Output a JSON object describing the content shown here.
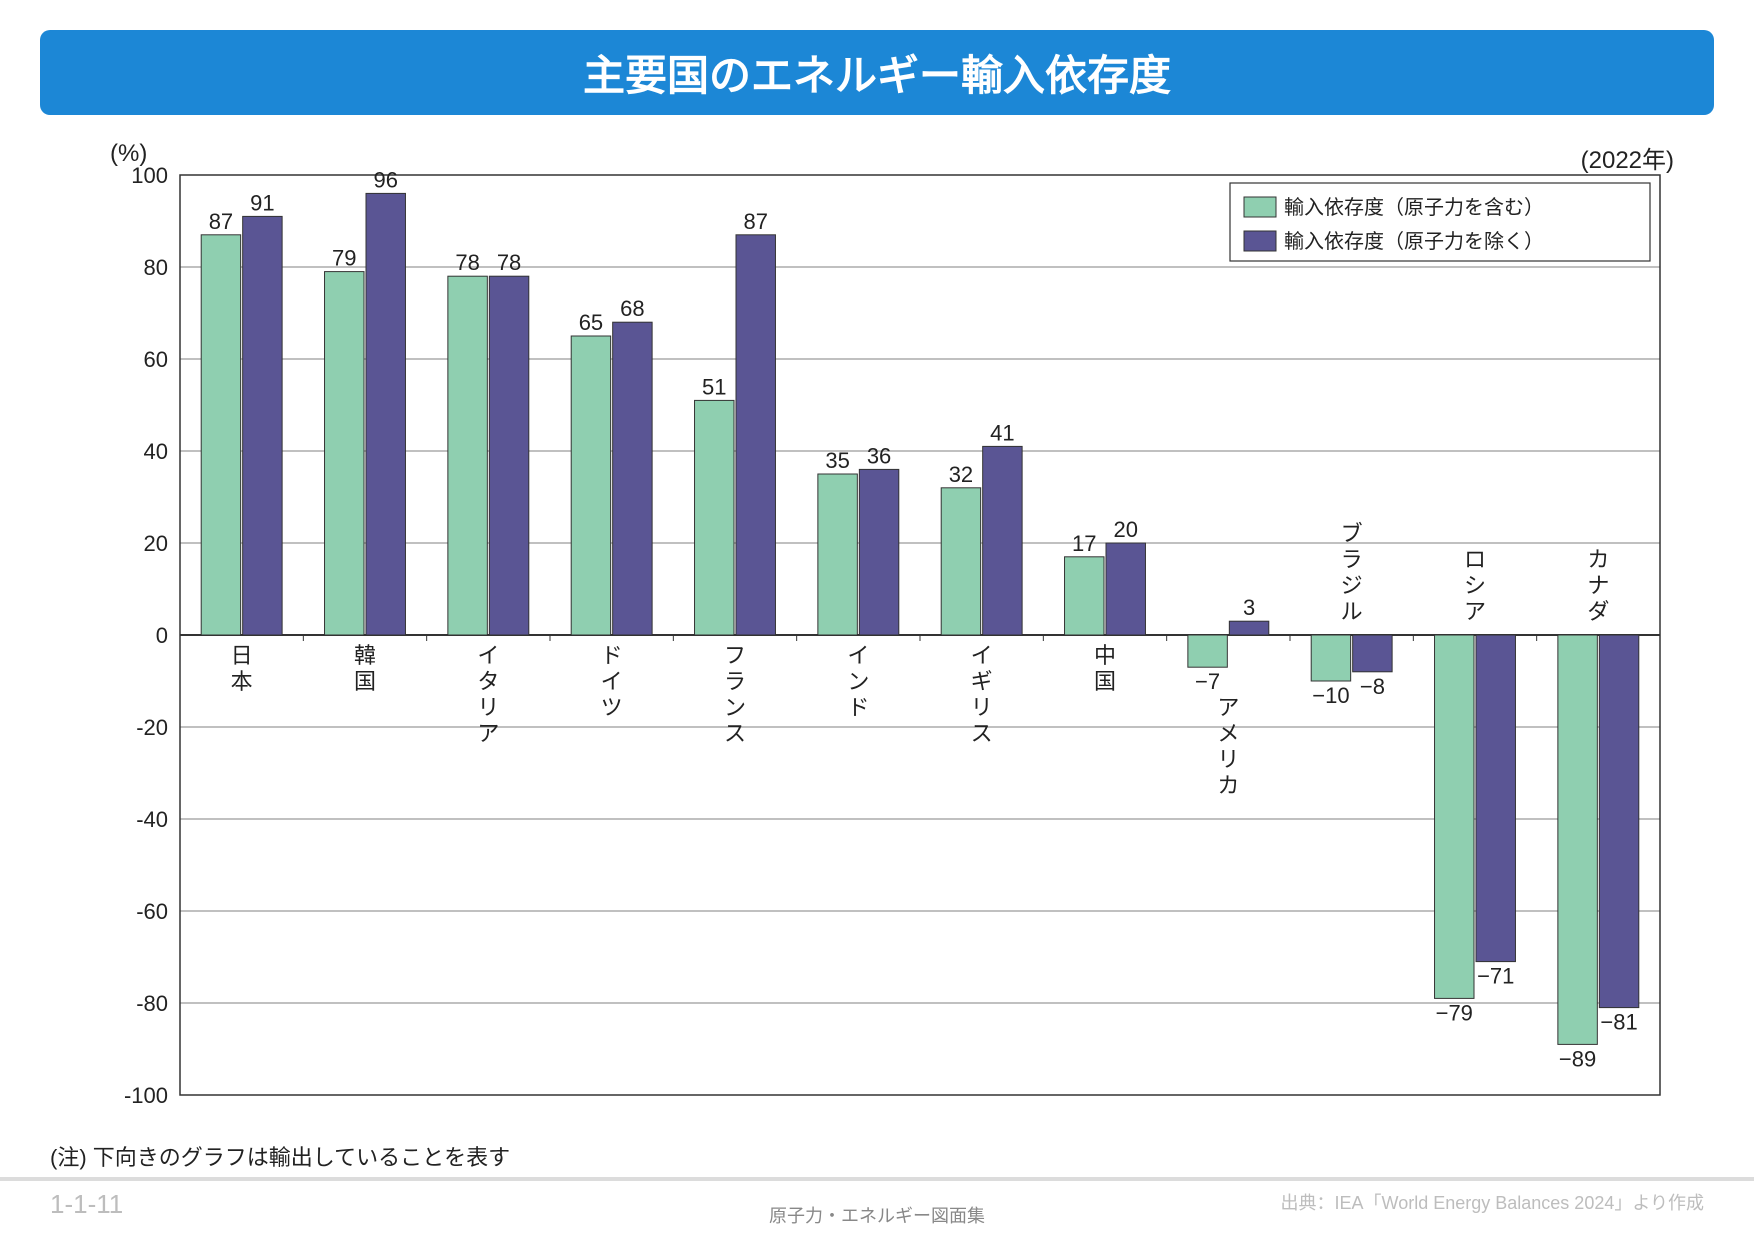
{
  "title": "主要国のエネルギー輸入依存度",
  "year_label": "(2022年)",
  "y_unit": "(%)",
  "note": "(注) 下向きのグラフは輸出していることを表す",
  "page_number": "1-1-11",
  "source": "出典：IEA「World Energy Balances 2024」より作成",
  "doc_title": "原子力・エネルギー図面集",
  "chart": {
    "type": "bar-grouped",
    "ylim": [
      -100,
      100
    ],
    "ytick_step": 20,
    "yticks": [
      100,
      80,
      60,
      40,
      20,
      0,
      "-20",
      "-40",
      "-60",
      "-80",
      "-100"
    ],
    "background_color": "#ffffff",
    "grid_color": "#808080",
    "axis_color": "#333333",
    "bar_stroke": "#333333",
    "value_label_fontsize": 22,
    "category_label_fontsize": 22,
    "legend": {
      "position": "top-right",
      "border_color": "#333333",
      "bg": "#ffffff",
      "items": [
        {
          "label": "輸入依存度（原子力を含む）",
          "color": "#8fcfb0"
        },
        {
          "label": "輸入依存度（原子力を除く）",
          "color": "#5a5594"
        }
      ]
    },
    "series_colors": [
      "#8fcfb0",
      "#5a5594"
    ],
    "categories": [
      {
        "label": "日本",
        "values": [
          87,
          91
        ],
        "text": [
          "87",
          "91"
        ],
        "label_pos": "below"
      },
      {
        "label": "韓国",
        "values": [
          79,
          96
        ],
        "text": [
          "79",
          "96"
        ],
        "label_pos": "below"
      },
      {
        "label": "イタリア",
        "values": [
          78,
          78
        ],
        "text": [
          "78",
          "78"
        ],
        "label_pos": "below"
      },
      {
        "label": "ドイツ",
        "values": [
          65,
          68
        ],
        "text": [
          "65",
          "68"
        ],
        "label_pos": "below"
      },
      {
        "label": "フランス",
        "values": [
          51,
          87
        ],
        "text": [
          "51",
          "87"
        ],
        "label_pos": "below"
      },
      {
        "label": "インド",
        "values": [
          35,
          36
        ],
        "text": [
          "35",
          "36"
        ],
        "label_pos": "below"
      },
      {
        "label": "イギリス",
        "values": [
          32,
          41
        ],
        "text": [
          "32",
          "41"
        ],
        "label_pos": "below"
      },
      {
        "label": "中国",
        "values": [
          17,
          20
        ],
        "text": [
          "17",
          "20"
        ],
        "label_pos": "below"
      },
      {
        "label": "アメリカ",
        "values": [
          -7,
          3
        ],
        "text": [
          "−7",
          "3"
        ],
        "label_pos": "below-neg"
      },
      {
        "label": "ブラジル",
        "values": [
          -10,
          -8
        ],
        "text": [
          "−10",
          "−8"
        ],
        "label_pos": "above"
      },
      {
        "label": "ロシア",
        "values": [
          -79,
          -71
        ],
        "text": [
          "−79",
          "−71"
        ],
        "label_pos": "above"
      },
      {
        "label": "カナダ",
        "values": [
          -89,
          -81
        ],
        "text": [
          "−89",
          "−81"
        ],
        "label_pos": "above"
      }
    ]
  }
}
